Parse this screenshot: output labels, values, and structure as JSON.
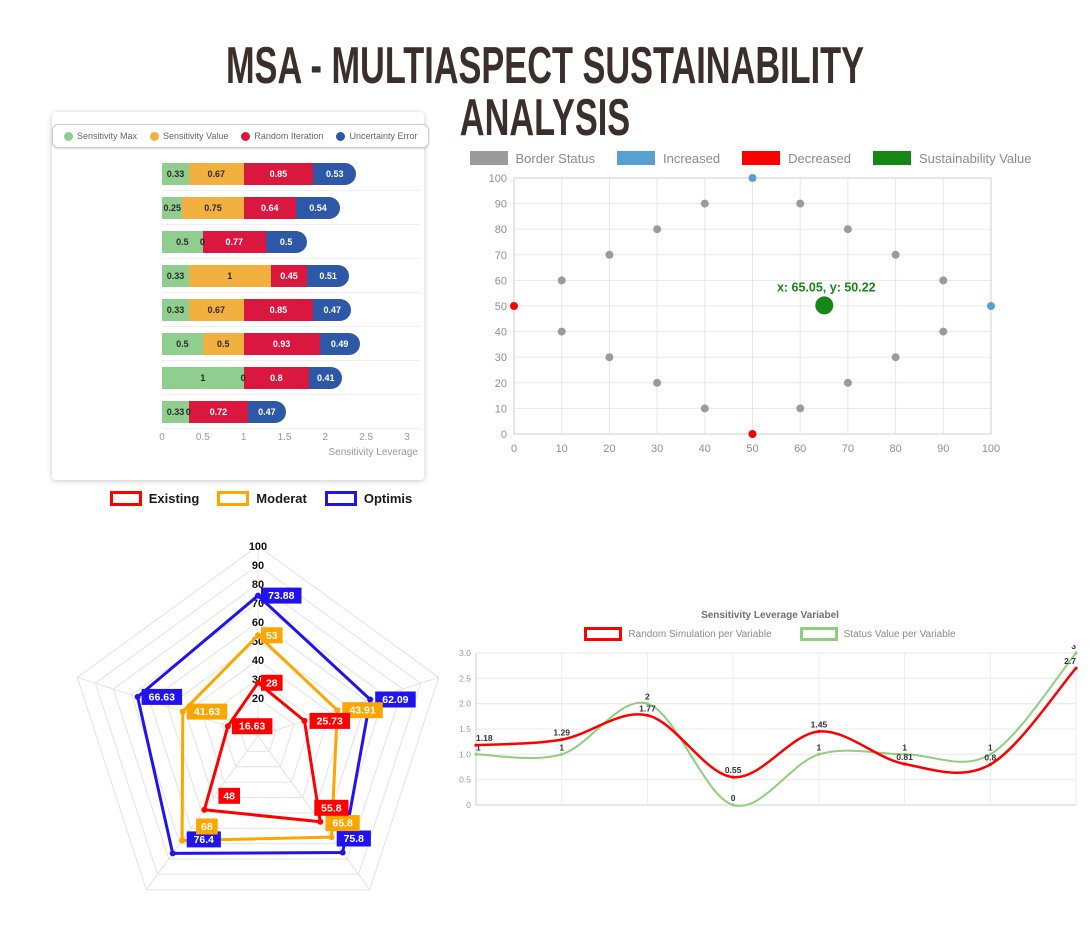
{
  "page_title": "MSA - MULTIASPECT SUSTAINABILITY ANALYSIS",
  "chart_data": [
    {
      "id": "sensitivity-stacked-bar",
      "type": "bar",
      "orientation": "horizontal",
      "stacked": true,
      "legend": [
        {
          "label": "Sensitivity Max",
          "color": "#8FCE8F",
          "text": "dark"
        },
        {
          "label": "Sensitivity Value",
          "color": "#F2B13F",
          "text": "dark"
        },
        {
          "label": "Random Iteration",
          "color": "#D9173F",
          "text": "light"
        },
        {
          "label": "Uncertainty Error",
          "color": "#2D57A7",
          "text": "light"
        }
      ],
      "rows": [
        [
          0.33,
          0.67,
          0.85,
          0.53
        ],
        [
          0.25,
          0.75,
          0.64,
          0.54
        ],
        [
          0.5,
          0,
          0.77,
          0.5
        ],
        [
          0.33,
          1,
          0.45,
          0.51
        ],
        [
          0.33,
          0.67,
          0.85,
          0.47
        ],
        [
          0.5,
          0.5,
          0.93,
          0.49
        ],
        [
          1,
          0,
          0.8,
          0.41
        ],
        [
          0.33,
          0,
          0.72,
          0.47
        ]
      ],
      "xlabel": "Sensitivity Leverage",
      "xlim": [
        0,
        3
      ],
      "x_ticks": [
        "0",
        "0.5",
        "1",
        "1.5",
        "2",
        "2.5",
        "3"
      ],
      "grid": true,
      "legend_position": "top"
    },
    {
      "id": "sustainability-scatter",
      "type": "scatter",
      "xlim": [
        0,
        100
      ],
      "ylim": [
        0,
        100
      ],
      "x_ticks": [
        0,
        10,
        20,
        30,
        40,
        50,
        60,
        70,
        80,
        90,
        100
      ],
      "y_ticks": [
        0,
        10,
        20,
        30,
        40,
        50,
        60,
        70,
        80,
        90,
        100
      ],
      "grid": true,
      "legend_position": "top",
      "series": [
        {
          "name": "Border Status",
          "color": "#9B9B9B",
          "r": 4,
          "points": [
            [
              10,
              60
            ],
            [
              20,
              70
            ],
            [
              30,
              80
            ],
            [
              40,
              90
            ],
            [
              60,
              90
            ],
            [
              70,
              80
            ],
            [
              80,
              70
            ],
            [
              90,
              60
            ],
            [
              10,
              40
            ],
            [
              20,
              30
            ],
            [
              30,
              20
            ],
            [
              40,
              10
            ],
            [
              60,
              10
            ],
            [
              70,
              20
            ],
            [
              80,
              30
            ],
            [
              90,
              40
            ]
          ]
        },
        {
          "name": "Increased",
          "color": "#58A0D2",
          "r": 4,
          "points": [
            [
              50,
              100
            ],
            [
              100,
              50
            ]
          ]
        },
        {
          "name": "Decreased",
          "color": "#FF0000",
          "r": 4,
          "points": [
            [
              0,
              50
            ],
            [
              50,
              0
            ]
          ]
        },
        {
          "name": "Sustainability Value",
          "color": "#168716",
          "r": 9,
          "points": [
            [
              65.05,
              50.22
            ]
          ],
          "annotation": "x: 65.05, y: 50.22"
        }
      ]
    },
    {
      "id": "scenario-radar",
      "type": "radar",
      "num_axes": 5,
      "rings": [
        10,
        20,
        30,
        40,
        50,
        60,
        70,
        80,
        90,
        100
      ],
      "ticks": [
        20,
        30,
        40,
        50,
        60,
        70,
        80,
        90,
        100
      ],
      "rmax": 100,
      "legend_position": "top",
      "series": [
        {
          "name": "Existing",
          "color": "#FF0000",
          "values": [
            28,
            25.73,
            55.8,
            48,
            16.63
          ]
        },
        {
          "name": "Moderat",
          "color": "#FFA500",
          "values": [
            53,
            43.91,
            65.8,
            68,
            41.63
          ]
        },
        {
          "name": "Optimis",
          "color": "#2013EE",
          "values": [
            73.88,
            62.09,
            75.8,
            76.4,
            66.63
          ]
        }
      ]
    },
    {
      "id": "sensitivity-leverage-line",
      "type": "line",
      "title": "Sensitivity Leverage Variabel",
      "ylim": [
        0,
        3
      ],
      "y_ticks": [
        "0",
        "0.5",
        "1.0",
        "1.5",
        "2.0",
        "2.5",
        "3.0"
      ],
      "grid": true,
      "legend_position": "top",
      "series": [
        {
          "name": "Random Simulation per Variable",
          "color": "#FF0000",
          "values": [
            1.18,
            1.29,
            1.77,
            0.55,
            1.45,
            0.81,
            0.8,
            2.7
          ]
        },
        {
          "name": "Status Value per Variable",
          "color": "#8FCE7F",
          "values": [
            1,
            1,
            2,
            0,
            1,
            1,
            1,
            3
          ]
        }
      ]
    }
  ]
}
